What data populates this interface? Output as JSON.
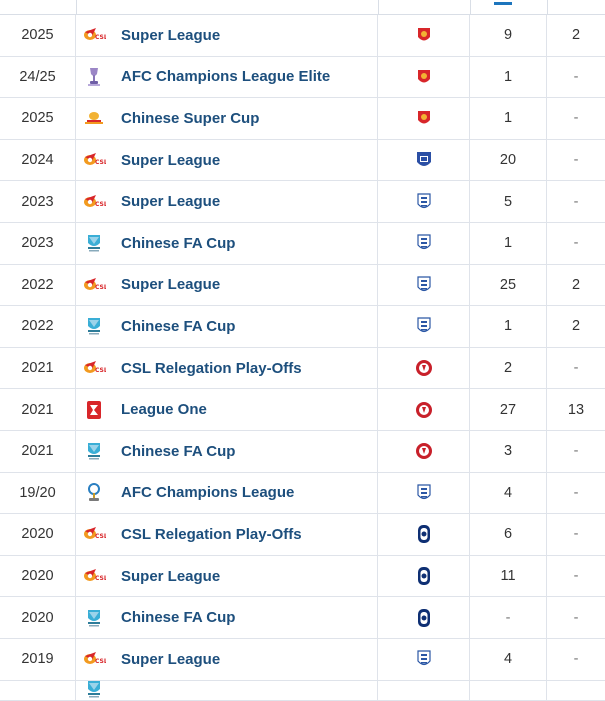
{
  "rows": [
    {
      "season": "2025",
      "competition": "Super League",
      "comp_icon": "csl-logo",
      "club_icon": "shanghai-port-crest",
      "apps": "9",
      "goals": "2"
    },
    {
      "season": "24/25",
      "competition": "AFC Champions League Elite",
      "comp_icon": "acl-trophy",
      "club_icon": "shanghai-port-crest",
      "apps": "1",
      "goals": "-"
    },
    {
      "season": "2025",
      "competition": "Chinese Super Cup",
      "comp_icon": "super-cup-trophy",
      "club_icon": "shanghai-port-crest",
      "apps": "1",
      "goals": "-"
    },
    {
      "season": "2024",
      "competition": "Super League",
      "comp_icon": "csl-logo",
      "club_icon": "blue-shield-crest",
      "apps": "20",
      "goals": "-"
    },
    {
      "season": "2023",
      "competition": "Super League",
      "comp_icon": "csl-logo",
      "club_icon": "shenhua-crest",
      "apps": "5",
      "goals": "-"
    },
    {
      "season": "2023",
      "competition": "Chinese FA Cup",
      "comp_icon": "fa-cup-logo",
      "club_icon": "shenhua-crest",
      "apps": "1",
      "goals": "-"
    },
    {
      "season": "2022",
      "competition": "Super League",
      "comp_icon": "csl-logo",
      "club_icon": "shenhua-crest",
      "apps": "25",
      "goals": "2"
    },
    {
      "season": "2022",
      "competition": "Chinese FA Cup",
      "comp_icon": "fa-cup-logo",
      "club_icon": "shenhua-crest",
      "apps": "1",
      "goals": "2"
    },
    {
      "season": "2021",
      "competition": "CSL Relegation Play-Offs",
      "comp_icon": "csl-logo",
      "club_icon": "red-round-crest",
      "apps": "2",
      "goals": "-"
    },
    {
      "season": "2021",
      "competition": "League One",
      "comp_icon": "league-one-logo",
      "club_icon": "red-round-crest",
      "apps": "27",
      "goals": "13"
    },
    {
      "season": "2021",
      "competition": "Chinese FA Cup",
      "comp_icon": "fa-cup-logo",
      "club_icon": "red-round-crest",
      "apps": "3",
      "goals": "-"
    },
    {
      "season": "19/20",
      "competition": "AFC Champions League",
      "comp_icon": "acl-trophy-blue",
      "club_icon": "shenhua-crest",
      "apps": "4",
      "goals": "-"
    },
    {
      "season": "2020",
      "competition": "CSL Relegation Play-Offs",
      "comp_icon": "csl-logo",
      "club_icon": "navy-oval-crest",
      "apps": "6",
      "goals": "-"
    },
    {
      "season": "2020",
      "competition": "Super League",
      "comp_icon": "csl-logo",
      "club_icon": "navy-oval-crest",
      "apps": "11",
      "goals": "-"
    },
    {
      "season": "2020",
      "competition": "Chinese FA Cup",
      "comp_icon": "fa-cup-logo",
      "club_icon": "navy-oval-crest",
      "apps": "-",
      "goals": "-"
    },
    {
      "season": "2019",
      "competition": "Super League",
      "comp_icon": "csl-logo",
      "club_icon": "shenhua-crest",
      "apps": "4",
      "goals": "-"
    }
  ],
  "colors": {
    "link": "#1d4f7d",
    "accent": "#1d75bd",
    "border": "#dfe3ea",
    "csl_orange": "#f29a1f",
    "csl_red": "#d8262a"
  }
}
